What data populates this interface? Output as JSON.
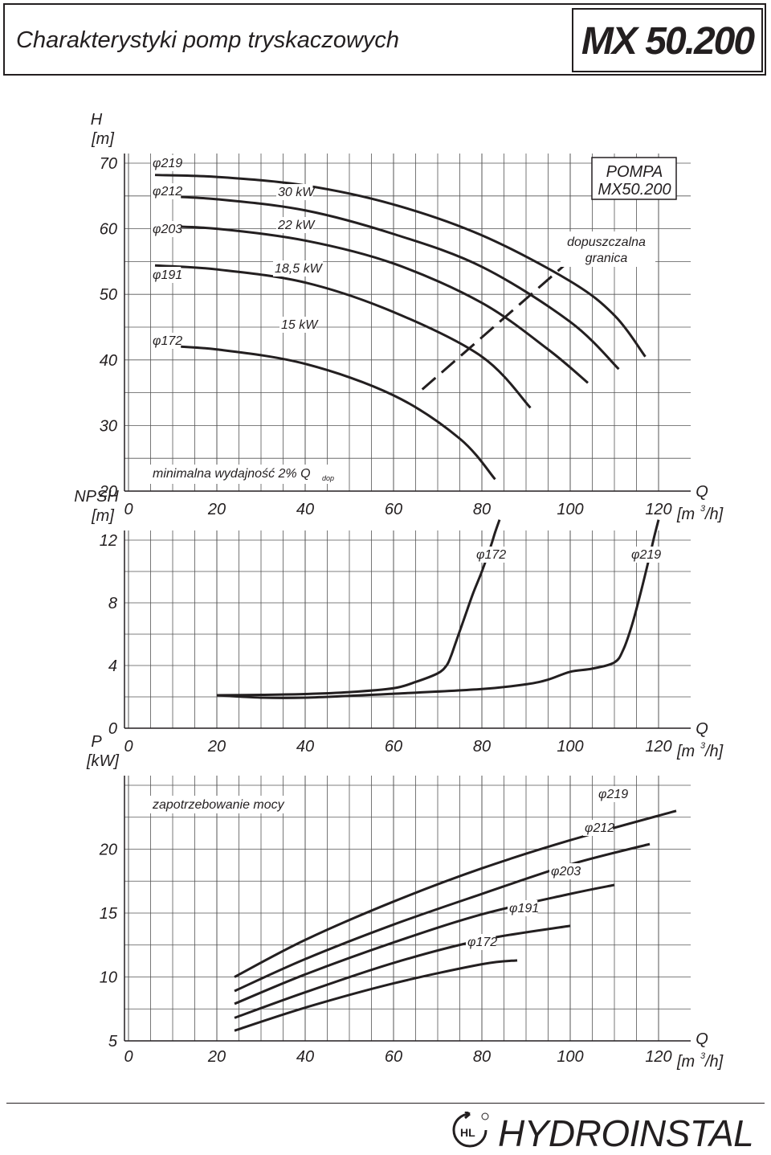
{
  "header": {
    "title": "Charakterystyki pomp tryskaczowych",
    "model": "MX 50.200"
  },
  "footer": {
    "brand": "HYDROINSTAL",
    "logo_text": "HL"
  },
  "chart_data": [
    {
      "type": "line",
      "id": "head",
      "ylabel": "H [m]",
      "xlabel": "Q [m3/h]",
      "xlim": [
        0,
        120
      ],
      "ylim": [
        20,
        70
      ],
      "x_ticks": [
        0,
        20,
        40,
        60,
        80,
        100,
        120
      ],
      "y_ticks": [
        20,
        30,
        40,
        50,
        60,
        70
      ],
      "series": [
        {
          "name": "φ219",
          "x": [
            6,
            20,
            40,
            60,
            80,
            100,
            110,
            117
          ],
          "y": [
            68.2,
            67.9,
            66.6,
            63.7,
            59.0,
            52.0,
            46.8,
            40.5
          ]
        },
        {
          "name": "φ212",
          "x": [
            6,
            20,
            40,
            60,
            80,
            100,
            111
          ],
          "y": [
            65.0,
            64.5,
            62.8,
            59.2,
            54.2,
            45.8,
            38.6
          ]
        },
        {
          "name": "φ203",
          "x": [
            6,
            20,
            40,
            60,
            80,
            95,
            104
          ],
          "y": [
            60.4,
            60.0,
            58.2,
            54.7,
            48.7,
            41.6,
            36.5
          ]
        },
        {
          "name": "φ191",
          "x": [
            6,
            20,
            40,
            60,
            80,
            91
          ],
          "y": [
            54.4,
            53.8,
            51.8,
            47.3,
            40.5,
            32.7
          ]
        },
        {
          "name": "φ172",
          "x": [
            6,
            20,
            40,
            60,
            75,
            83
          ],
          "y": [
            42.2,
            41.6,
            39.4,
            34.6,
            28.0,
            21.8
          ]
        }
      ],
      "curve_labels": [
        "φ219",
        "φ212",
        "φ203",
        "φ191",
        "φ172"
      ],
      "power_labels": [
        "30 kW",
        "22 kW",
        "18,5 kW",
        "15 kW"
      ],
      "limit_line": {
        "label": [
          "dopuszczalna",
          "granica"
        ],
        "x": [
          66.5,
          100.5
        ],
        "y": [
          35.5,
          55.5
        ]
      },
      "annotation_box": {
        "line1": "POMPA",
        "line2": "MX50.200"
      },
      "min_flow_label": "minimalna wydajność 2% Q",
      "min_flow_sub": "dop",
      "x_axis_label": "Q",
      "x_axis_unit": "[m",
      "x_axis_unit_sup": "3",
      "x_axis_unit_end": "/h]",
      "y_axis_label": "H",
      "y_axis_unit": "[m]"
    },
    {
      "type": "line",
      "id": "npsh",
      "ylabel": "NPSH [m]",
      "xlabel": "Q [m3/h]",
      "xlim": [
        0,
        120
      ],
      "ylim": [
        0,
        12
      ],
      "x_ticks": [
        0,
        20,
        40,
        60,
        80,
        100,
        120
      ],
      "y_ticks": [
        0,
        4,
        8,
        12
      ],
      "series": [
        {
          "name": "φ172",
          "x": [
            20,
            30,
            40,
            50,
            60,
            65,
            70,
            72,
            73,
            74,
            76,
            78,
            80,
            82,
            83,
            84
          ],
          "y": [
            2.1,
            2.13,
            2.18,
            2.3,
            2.55,
            2.95,
            3.5,
            4.0,
            4.6,
            5.4,
            7.0,
            8.6,
            10.0,
            11.6,
            12.5,
            13.3
          ]
        },
        {
          "name": "φ219",
          "x": [
            20,
            30,
            40,
            60,
            80,
            90,
            95,
            100,
            105,
            110,
            112,
            114,
            116,
            118,
            119,
            120
          ],
          "y": [
            2.1,
            1.95,
            1.95,
            2.2,
            2.5,
            2.8,
            3.1,
            3.6,
            3.8,
            4.2,
            5.0,
            6.6,
            8.7,
            11.0,
            12.2,
            13.3
          ]
        }
      ],
      "curve_labels": [
        "φ172",
        "φ219"
      ],
      "x_axis_label": "Q",
      "x_axis_unit": "[m",
      "x_axis_unit_sup": "3",
      "x_axis_unit_end": "/h]",
      "y_axis_label": "NPSH",
      "y_axis_unit": "[m]"
    },
    {
      "type": "line",
      "id": "power",
      "ylabel": "P [kW]",
      "xlabel": "Q [m3/h]",
      "xlim": [
        0,
        120
      ],
      "ylim": [
        5,
        25
      ],
      "x_ticks": [
        0,
        20,
        40,
        60,
        80,
        100,
        120
      ],
      "y_ticks": [
        5,
        10,
        15,
        20
      ],
      "series": [
        {
          "name": "φ219",
          "x": [
            24,
            40,
            60,
            80,
            100,
            124
          ],
          "y": [
            10.0,
            12.9,
            15.9,
            18.5,
            20.7,
            23.0
          ]
        },
        {
          "name": "φ212",
          "x": [
            24,
            40,
            60,
            80,
            100,
            118
          ],
          "y": [
            8.9,
            11.4,
            14.1,
            16.5,
            18.8,
            20.4
          ]
        },
        {
          "name": "φ203",
          "x": [
            24,
            40,
            60,
            80,
            100,
            110
          ],
          "y": [
            7.9,
            10.2,
            12.7,
            14.9,
            16.5,
            17.2
          ]
        },
        {
          "name": "φ191",
          "x": [
            24,
            40,
            60,
            80,
            100
          ],
          "y": [
            6.8,
            8.8,
            11.1,
            12.9,
            14.0
          ]
        },
        {
          "name": "φ172",
          "x": [
            24,
            40,
            60,
            80,
            88
          ],
          "y": [
            5.8,
            7.6,
            9.5,
            11.0,
            11.3
          ]
        }
      ],
      "curve_labels": [
        "φ219",
        "φ212",
        "φ203",
        "φ191",
        "φ172"
      ],
      "title_label": "zapotrzebowanie mocy",
      "x_axis_label": "Q",
      "x_axis_unit": "[m",
      "x_axis_unit_sup": "3",
      "x_axis_unit_end": "/h]",
      "y_axis_label": "P",
      "y_axis_unit": "[kW]"
    }
  ]
}
